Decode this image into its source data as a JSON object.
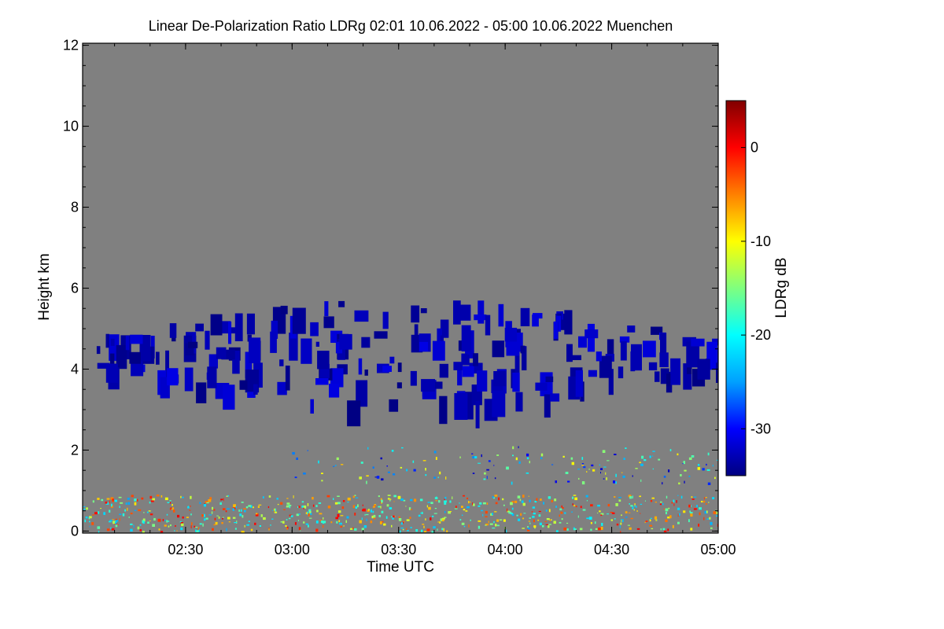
{
  "chart_data": {
    "type": "heatmap",
    "title": "Linear De-Polarization Ratio LDRg   02:01 10.06.2022 - 05:00 10.06.2022 Muenchen",
    "xlabel": "Time UTC",
    "ylabel": "Height km",
    "x_ticks": [
      {
        "label": "02:30",
        "hours": 2.5
      },
      {
        "label": "03:00",
        "hours": 3.0
      },
      {
        "label": "03:30",
        "hours": 3.5
      },
      {
        "label": "04:00",
        "hours": 4.0
      },
      {
        "label": "04:30",
        "hours": 4.5
      },
      {
        "label": "05:00",
        "hours": 5.0
      }
    ],
    "xlim_hours": [
      2.0167,
      5.0
    ],
    "y_ticks": [
      {
        "label": "0",
        "value": 0
      },
      {
        "label": "2",
        "value": 2
      },
      {
        "label": "4",
        "value": 4
      },
      {
        "label": "6",
        "value": 6
      },
      {
        "label": "8",
        "value": 8
      },
      {
        "label": "10",
        "value": 10
      },
      {
        "label": "12",
        "value": 12
      }
    ],
    "ylim_km": [
      -0.05,
      12.05
    ],
    "colorbar": {
      "label": "LDRg dB",
      "range": [
        -35,
        5
      ],
      "ticks": [
        {
          "label": "0",
          "value": 0
        },
        {
          "label": "-10",
          "value": -10
        },
        {
          "label": "-20",
          "value": -20
        },
        {
          "label": "-30",
          "value": -30
        }
      ],
      "colormap": [
        "#000080",
        "#0000ff",
        "#00a0ff",
        "#00ffff",
        "#7fff7f",
        "#ffff00",
        "#ff8000",
        "#ff0000",
        "#800000"
      ]
    },
    "background_color": "#808080",
    "features": [
      {
        "name": "mid-level cloud layer",
        "t_start": 2.05,
        "t_end": 5.0,
        "base_km": 3.0,
        "top_km": 5.9,
        "ldr_db": -33
      },
      {
        "name": "low scattered layer",
        "t_start": 3.0,
        "t_end": 5.0,
        "base_km": 1.2,
        "top_km": 2.1,
        "ldr_db": -20
      },
      {
        "name": "boundary layer clutter",
        "t_start": 2.0167,
        "t_end": 5.0,
        "base_km": 0.0,
        "top_km": 0.9,
        "ldr_db": -12
      }
    ]
  }
}
